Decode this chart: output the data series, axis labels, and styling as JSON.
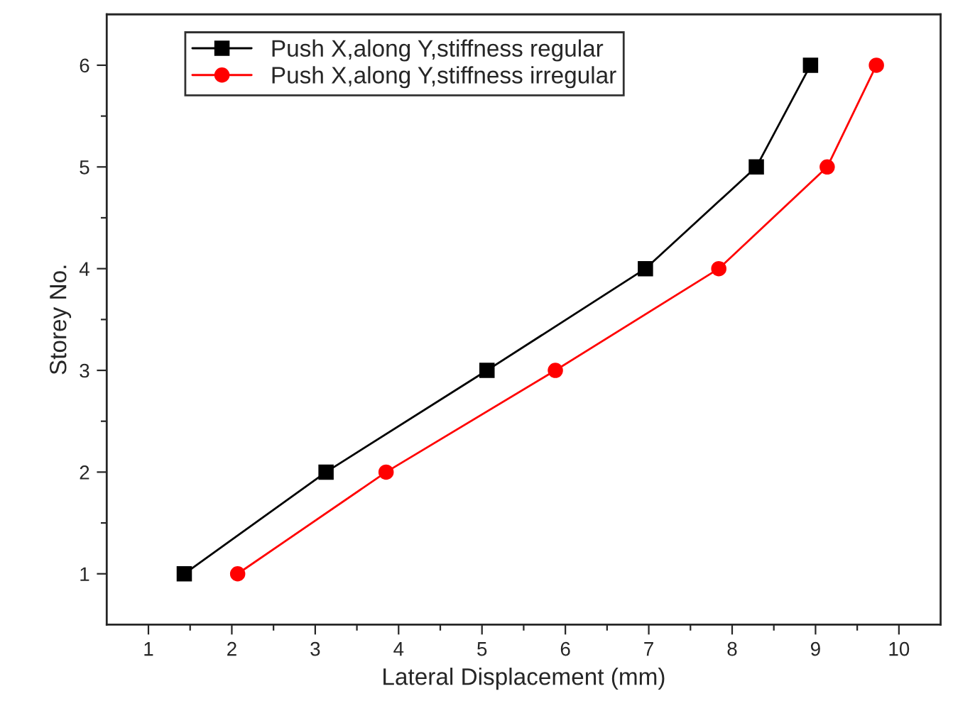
{
  "chart_data": {
    "type": "line",
    "xlabel": "Lateral Displacement (mm)",
    "ylabel": "Storey No.",
    "series": [
      {
        "name": "Push X,along Y,stiffness regular",
        "color": "#000000",
        "marker": "square",
        "x": [
          1.43,
          3.13,
          5.06,
          6.96,
          8.29,
          8.94
        ],
        "values": [
          1,
          2,
          3,
          4,
          5,
          6
        ]
      },
      {
        "name": "Push X,along Y,stiffness irregular",
        "color": "#ff0000",
        "marker": "circle",
        "x": [
          2.07,
          3.85,
          5.88,
          7.84,
          9.14,
          9.73
        ],
        "values": [
          1,
          2,
          3,
          4,
          5,
          6
        ]
      }
    ],
    "xlim": [
      0.5,
      10.5
    ],
    "ylim": [
      0.5,
      6.5
    ],
    "xticks": [
      1,
      {
        "value": 1.5,
        "label": null
      },
      2,
      {
        "value": 2.5,
        "label": null
      },
      3,
      {
        "value": 3.5,
        "label": null
      },
      4,
      {
        "value": 4.5,
        "label": null
      },
      5,
      {
        "value": 5.5,
        "label": null
      },
      6,
      {
        "value": 6.5,
        "label": null
      },
      7,
      {
        "value": 7.5,
        "label": null
      },
      8,
      {
        "value": 8.5,
        "label": null
      },
      9,
      {
        "value": 9.5,
        "label": null
      },
      10
    ],
    "yticks": [
      1,
      {
        "value": 1.5,
        "label": null
      },
      2,
      {
        "value": 2.5,
        "label": null
      },
      3,
      {
        "value": 3.5,
        "label": null
      },
      4,
      {
        "value": 4.5,
        "label": null
      },
      5,
      {
        "value": 5.5,
        "label": null
      },
      6
    ],
    "grid": false,
    "legend": "top left",
    "line_style": "solid"
  }
}
